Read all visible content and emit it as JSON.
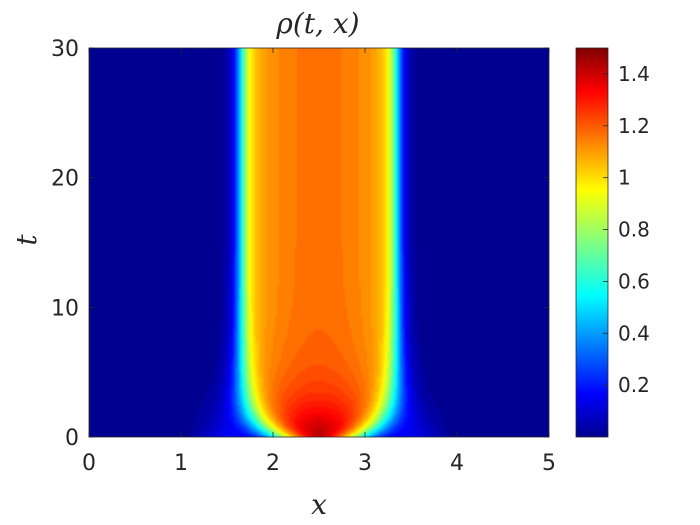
{
  "chart_data": {
    "type": "heatmap",
    "title": "ρ(t, x)",
    "xlabel": "x",
    "ylabel": "t",
    "xlim": [
      0,
      5
    ],
    "ylim": [
      0,
      30
    ],
    "xticks": [
      "0",
      "1",
      "2",
      "3",
      "4",
      "5"
    ],
    "yticks": [
      "0",
      "10",
      "20",
      "30"
    ],
    "colorbar": {
      "range": [
        0,
        1.5
      ],
      "colormap": "jet",
      "ticks": [
        "0.2",
        "0.4",
        "0.6",
        "0.8",
        "1",
        "1.2",
        "1.4"
      ]
    },
    "grid": false,
    "field_description": {
      "center_x": 2.5,
      "plateau_edges_x": [
        1.65,
        3.35
      ],
      "peak_value_t0": 1.5,
      "steady_center_value": 1.15,
      "background_value": 0.02
    }
  }
}
